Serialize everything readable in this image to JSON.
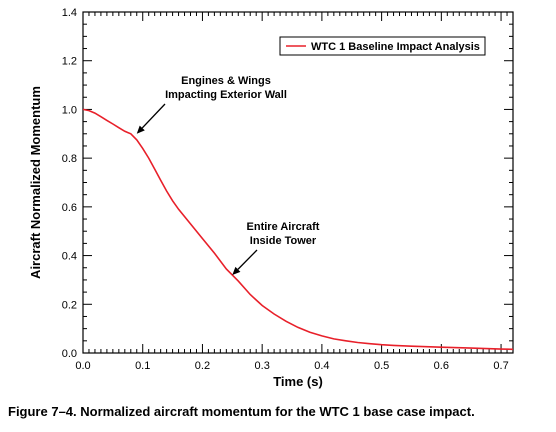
{
  "chart_data": {
    "type": "line",
    "xlabel": "Time  (s)",
    "ylabel": "Aircraft Normalized Momentum",
    "xlim": [
      0,
      0.72
    ],
    "ylim": [
      0,
      1.4
    ],
    "xticks": [
      "0.0",
      "0.1",
      "0.2",
      "0.3",
      "0.4",
      "0.5",
      "0.6",
      "0.7"
    ],
    "yticks": [
      "0.0",
      "0.2",
      "0.4",
      "0.6",
      "0.8",
      "1.0",
      "1.2",
      "1.4"
    ],
    "grid": false,
    "legend_position": "top-right",
    "series": [
      {
        "name": "WTC 1 Baseline Impact Analysis",
        "color": "#e8202a",
        "x": [
          0.0,
          0.01,
          0.02,
          0.03,
          0.04,
          0.05,
          0.06,
          0.07,
          0.08,
          0.09,
          0.1,
          0.11,
          0.12,
          0.13,
          0.14,
          0.15,
          0.16,
          0.18,
          0.2,
          0.22,
          0.24,
          0.26,
          0.28,
          0.3,
          0.32,
          0.34,
          0.36,
          0.38,
          0.4,
          0.42,
          0.44,
          0.46,
          0.48,
          0.5,
          0.52,
          0.55,
          0.6,
          0.65,
          0.7,
          0.72
        ],
        "y": [
          1.0,
          0.995,
          0.985,
          0.97,
          0.955,
          0.94,
          0.925,
          0.91,
          0.9,
          0.875,
          0.84,
          0.8,
          0.755,
          0.71,
          0.665,
          0.625,
          0.59,
          0.53,
          0.47,
          0.41,
          0.345,
          0.295,
          0.24,
          0.195,
          0.16,
          0.13,
          0.105,
          0.085,
          0.07,
          0.058,
          0.05,
          0.043,
          0.038,
          0.034,
          0.031,
          0.028,
          0.024,
          0.02,
          0.016,
          0.015
        ]
      }
    ],
    "annotations": [
      {
        "lines": [
          "Engines & Wings",
          "Impacting Exterior Wall"
        ],
        "target": [
          0.09,
          0.9
        ]
      },
      {
        "lines": [
          "Entire Aircraft",
          "Inside Tower"
        ],
        "target": [
          0.25,
          0.32
        ]
      }
    ]
  },
  "caption": "Figure 7–4.  Normalized aircraft momentum for the WTC 1 base case impact."
}
